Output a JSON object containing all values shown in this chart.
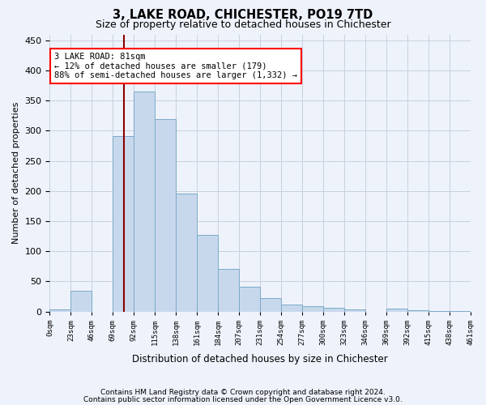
{
  "title": "3, LAKE ROAD, CHICHESTER, PO19 7TD",
  "subtitle": "Size of property relative to detached houses in Chichester",
  "xlabel": "Distribution of detached houses by size in Chichester",
  "ylabel": "Number of detached properties",
  "bin_labels": [
    "0sqm",
    "23sqm",
    "46sqm",
    "69sqm",
    "92sqm",
    "115sqm",
    "138sqm",
    "161sqm",
    "184sqm",
    "207sqm",
    "231sqm",
    "254sqm",
    "277sqm",
    "300sqm",
    "323sqm",
    "346sqm",
    "369sqm",
    "392sqm",
    "415sqm",
    "438sqm",
    "461sqm"
  ],
  "bar_heights": [
    4,
    35,
    0,
    291,
    365,
    320,
    196,
    127,
    71,
    41,
    22,
    12,
    9,
    6,
    3,
    0,
    5,
    2,
    1,
    1
  ],
  "bar_color": "#c8d8ec",
  "bar_edge_color": "#7aaac8",
  "vline_x": 81,
  "bin_width": 23,
  "ylim": [
    0,
    460
  ],
  "yticks": [
    0,
    50,
    100,
    150,
    200,
    250,
    300,
    350,
    400,
    450
  ],
  "annotation_text": "3 LAKE ROAD: 81sqm\n← 12% of detached houses are smaller (179)\n88% of semi-detached houses are larger (1,332) →",
  "footer_line1": "Contains HM Land Registry data © Crown copyright and database right 2024.",
  "footer_line2": "Contains public sector information licensed under the Open Government Licence v3.0.",
  "bg_color": "#eef2fb",
  "plot_bg_color": "#eef2fb",
  "grid_color": "#c8d0df"
}
